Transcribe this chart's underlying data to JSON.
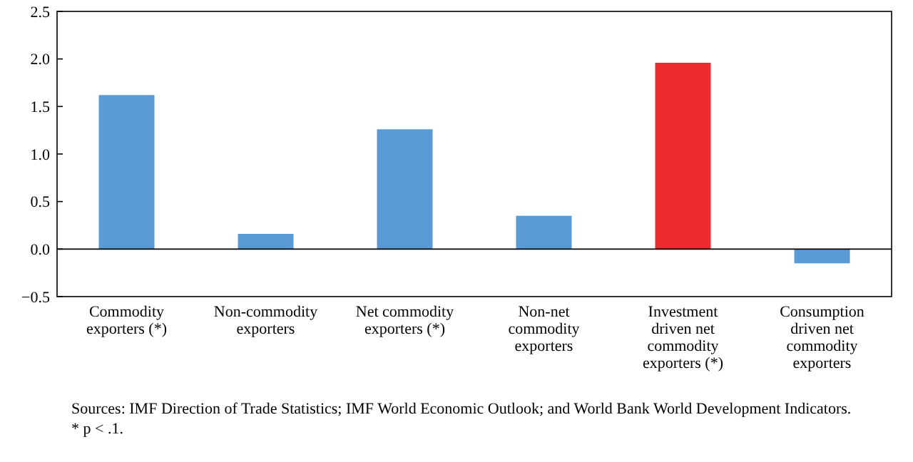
{
  "chart_data": {
    "type": "bar",
    "categories": [
      "Commodity exporters (*)",
      "Non-commodity exporters",
      "Net commodity exporters (*)",
      "Non-net commodity exporters",
      "Investment driven net commodity exporters (*)",
      "Consumption driven net commodity exporters"
    ],
    "values": [
      1.62,
      0.16,
      1.26,
      0.35,
      1.96,
      -0.15
    ],
    "colors": [
      "#5b9bd5",
      "#5b9bd5",
      "#5b9bd5",
      "#5b9bd5",
      "#ed2a2d",
      "#5b9bd5"
    ],
    "ylim": [
      -0.5,
      2.5
    ],
    "yticks": [
      {
        "value": -0.5,
        "label": "−0.5"
      },
      {
        "value": 0,
        "label": "0.0"
      },
      {
        "value": 0.5,
        "label": "0.5"
      },
      {
        "value": 1,
        "label": "1.0"
      },
      {
        "value": 1.5,
        "label": "1.5"
      },
      {
        "value": 2,
        "label": "2.0"
      },
      {
        "value": 2.5,
        "label": "2.5"
      }
    ],
    "ref_lines": [
      {
        "axis": "y",
        "value": 0,
        "color": "#000000"
      }
    ],
    "annotations": [
      "Sources: IMF Direction of Trade Statistics; IMF World Economic Outlook; and World Bank World Development Indicators.",
      "* p < .1."
    ]
  }
}
